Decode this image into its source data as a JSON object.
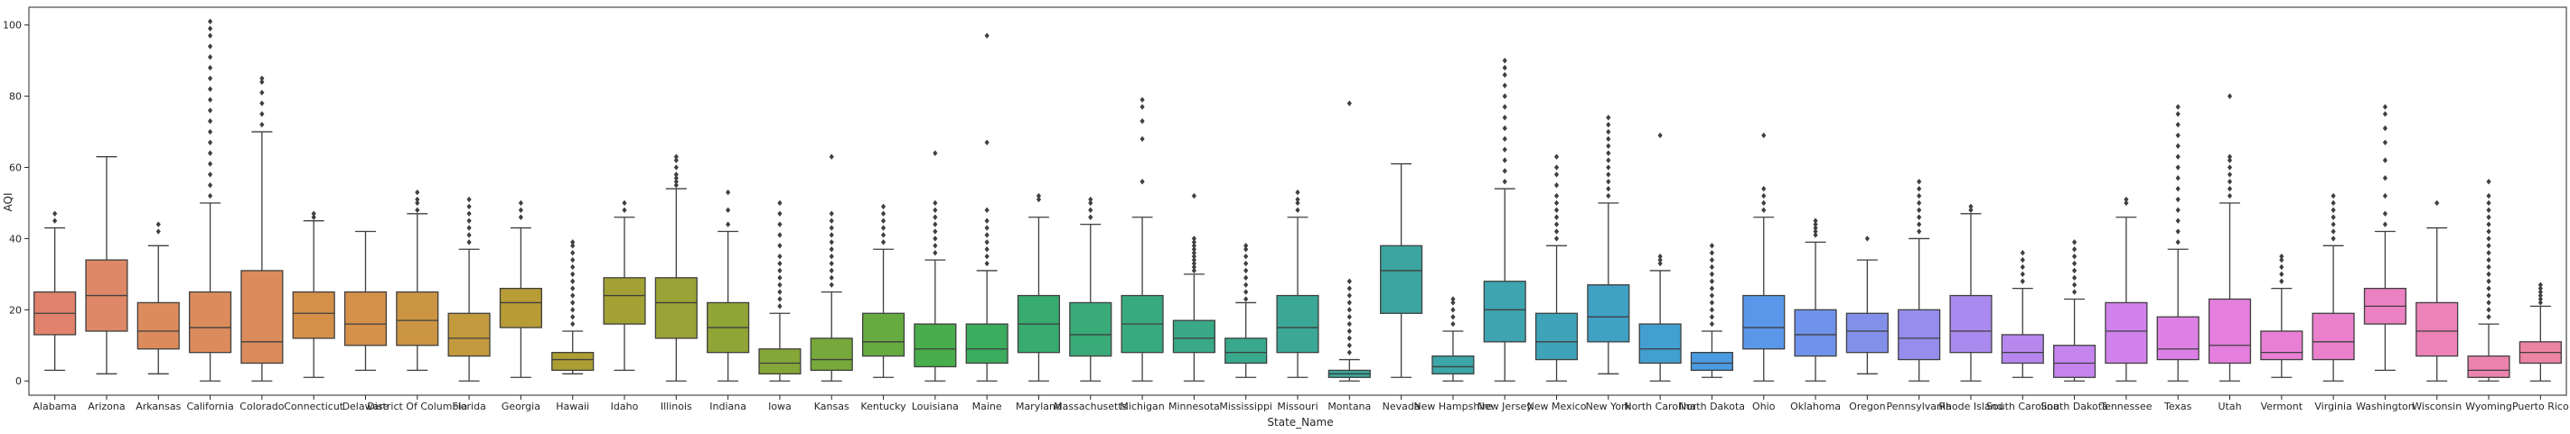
{
  "chart_data": {
    "type": "box",
    "xlabel": "State_Name",
    "ylabel": "AQI",
    "ylim": [
      -4,
      105
    ],
    "yticks": [
      0,
      20,
      40,
      60,
      80,
      100
    ],
    "grid": false,
    "legend": "none",
    "categories": [
      {
        "name": "Alabama",
        "color": "#e1826c",
        "min": 3,
        "q1": 13,
        "median": 19,
        "q3": 25,
        "max": 43,
        "outliers": [
          45,
          47
        ]
      },
      {
        "name": "Arizona",
        "color": "#df8867",
        "min": 2,
        "q1": 14,
        "median": 24,
        "q3": 34,
        "max": 63,
        "outliers": []
      },
      {
        "name": "Arkansas",
        "color": "#dc8c5c",
        "min": 2,
        "q1": 9,
        "median": 14,
        "q3": 22,
        "max": 38,
        "outliers": [
          42,
          44
        ]
      },
      {
        "name": "California",
        "color": "#dc8c5c",
        "min": 0,
        "q1": 8,
        "median": 15,
        "q3": 25,
        "max": 50,
        "outliers": [
          52,
          55,
          58,
          61,
          64,
          67,
          70,
          73,
          76,
          79,
          82,
          85,
          88,
          91,
          94,
          97,
          99,
          101
        ]
      },
      {
        "name": "Colorado",
        "color": "#dc8c5c",
        "min": 0,
        "q1": 5,
        "median": 11,
        "q3": 31,
        "max": 70,
        "outliers": [
          72,
          75,
          78,
          81,
          84,
          85
        ]
      },
      {
        "name": "Connecticut",
        "color": "#d5904a",
        "min": 1,
        "q1": 12,
        "median": 19,
        "q3": 25,
        "max": 45,
        "outliers": [
          46,
          47
        ]
      },
      {
        "name": "Delaware",
        "color": "#d5904a",
        "min": 3,
        "q1": 10,
        "median": 16,
        "q3": 25,
        "max": 42,
        "outliers": []
      },
      {
        "name": "District Of Columbia",
        "color": "#cc9544",
        "min": 3,
        "q1": 10,
        "median": 17,
        "q3": 25,
        "max": 47,
        "outliers": [
          48,
          50,
          51,
          53
        ]
      },
      {
        "name": "Florida",
        "color": "#c39a3d",
        "min": 0,
        "q1": 7,
        "median": 12,
        "q3": 19,
        "max": 37,
        "outliers": [
          39,
          41,
          43,
          45,
          47,
          49,
          51
        ]
      },
      {
        "name": "Georgia",
        "color": "#b89c35",
        "min": 1,
        "q1": 15,
        "median": 22,
        "q3": 26,
        "max": 43,
        "outliers": [
          46,
          48,
          50
        ]
      },
      {
        "name": "Hawaii",
        "color": "#ad9e33",
        "min": 2,
        "q1": 3,
        "median": 6,
        "q3": 8,
        "max": 14,
        "outliers": [
          16,
          18,
          20,
          22,
          24,
          26,
          28,
          30,
          32,
          34,
          36,
          38,
          39
        ]
      },
      {
        "name": "Idaho",
        "color": "#a4a134",
        "min": 3,
        "q1": 16,
        "median": 24,
        "q3": 29,
        "max": 46,
        "outliers": [
          48,
          50
        ]
      },
      {
        "name": "Illinois",
        "color": "#9aa335",
        "min": 0,
        "q1": 12,
        "median": 22,
        "q3": 29,
        "max": 54,
        "outliers": [
          55,
          56,
          57,
          58,
          60,
          62,
          63
        ]
      },
      {
        "name": "Indiana",
        "color": "#90a536",
        "min": 0,
        "q1": 8,
        "median": 15,
        "q3": 22,
        "max": 42,
        "outliers": [
          44,
          48,
          53
        ]
      },
      {
        "name": "Iowa",
        "color": "#85a638",
        "min": 0,
        "q1": 2,
        "median": 5,
        "q3": 9,
        "max": 19,
        "outliers": [
          21,
          23,
          25,
          27,
          29,
          31,
          33,
          35,
          38,
          41,
          44,
          47,
          50
        ]
      },
      {
        "name": "Kansas",
        "color": "#77a83b",
        "min": 0,
        "q1": 3,
        "median": 6,
        "q3": 12,
        "max": 25,
        "outliers": [
          27,
          29,
          31,
          33,
          35,
          37,
          39,
          41,
          43,
          45,
          47,
          63
        ]
      },
      {
        "name": "Kentucky",
        "color": "#66ab40",
        "min": 1,
        "q1": 7,
        "median": 11,
        "q3": 19,
        "max": 37,
        "outliers": [
          39,
          41,
          43,
          45,
          47,
          49
        ]
      },
      {
        "name": "Louisiana",
        "color": "#48ad4a",
        "min": 0,
        "q1": 4,
        "median": 9,
        "q3": 16,
        "max": 34,
        "outliers": [
          36,
          38,
          40,
          42,
          44,
          46,
          48,
          50,
          64
        ]
      },
      {
        "name": "Maine",
        "color": "#3cac5f",
        "min": 0,
        "q1": 5,
        "median": 9,
        "q3": 16,
        "max": 31,
        "outliers": [
          33,
          35,
          37,
          39,
          41,
          43,
          45,
          48,
          67,
          97
        ]
      },
      {
        "name": "Maryland",
        "color": "#38ab6f",
        "min": 0,
        "q1": 8,
        "median": 16,
        "q3": 24,
        "max": 46,
        "outliers": [
          51,
          52
        ]
      },
      {
        "name": "Massachusetts",
        "color": "#38ab78",
        "min": 0,
        "q1": 7,
        "median": 13,
        "q3": 22,
        "max": 44,
        "outliers": [
          46,
          48,
          50,
          51
        ]
      },
      {
        "name": "Michigan",
        "color": "#38aa7f",
        "min": 0,
        "q1": 8,
        "median": 16,
        "q3": 24,
        "max": 46,
        "outliers": [
          56,
          68,
          73,
          77,
          79
        ]
      },
      {
        "name": "Minnesota",
        "color": "#39a986",
        "min": 0,
        "q1": 8,
        "median": 12,
        "q3": 17,
        "max": 30,
        "outliers": [
          31,
          32,
          33,
          34,
          35,
          36,
          37,
          38,
          39,
          40,
          52
        ]
      },
      {
        "name": "Mississippi",
        "color": "#39a98d",
        "min": 1,
        "q1": 5,
        "median": 8,
        "q3": 12,
        "max": 22,
        "outliers": [
          23,
          25,
          27,
          29,
          31,
          33,
          35,
          37,
          38
        ]
      },
      {
        "name": "Missouri",
        "color": "#3aa894",
        "min": 1,
        "q1": 8,
        "median": 15,
        "q3": 24,
        "max": 46,
        "outliers": [
          48,
          50,
          51,
          53
        ]
      },
      {
        "name": "Montana",
        "color": "#3aa79a",
        "min": 0,
        "q1": 1,
        "median": 2,
        "q3": 3,
        "max": 6,
        "outliers": [
          8,
          10,
          12,
          14,
          16,
          18,
          20,
          22,
          24,
          26,
          28,
          78
        ]
      },
      {
        "name": "Nevada",
        "color": "#3ba6a0",
        "min": 1,
        "q1": 19,
        "median": 31,
        "q3": 38,
        "max": 61,
        "outliers": []
      },
      {
        "name": "New Hampshire",
        "color": "#3ca5a8",
        "min": 0,
        "q1": 2,
        "median": 4,
        "q3": 7,
        "max": 14,
        "outliers": [
          16,
          18,
          20,
          22,
          23
        ]
      },
      {
        "name": "New Jersey",
        "color": "#3da4b0",
        "min": 0,
        "q1": 11,
        "median": 20,
        "q3": 28,
        "max": 54,
        "outliers": [
          56,
          59,
          62,
          65,
          68,
          71,
          74,
          77,
          80,
          83,
          86,
          88,
          90
        ]
      },
      {
        "name": "New Mexico",
        "color": "#3ea3b9",
        "min": 0,
        "q1": 6,
        "median": 11,
        "q3": 19,
        "max": 38,
        "outliers": [
          40,
          42,
          44,
          46,
          48,
          50,
          52,
          55,
          58,
          60,
          63
        ]
      },
      {
        "name": "New York",
        "color": "#3fa1c4",
        "min": 2,
        "q1": 11,
        "median": 18,
        "q3": 27,
        "max": 50,
        "outliers": [
          52,
          54,
          56,
          58,
          60,
          62,
          64,
          66,
          68,
          70,
          72,
          74
        ]
      },
      {
        "name": "North Carolina",
        "color": "#429fd0",
        "min": 0,
        "q1": 5,
        "median": 9,
        "q3": 16,
        "max": 31,
        "outliers": [
          33,
          34,
          35,
          69
        ]
      },
      {
        "name": "North Dakota",
        "color": "#4b9be0",
        "min": 1,
        "q1": 3,
        "median": 5,
        "q3": 8,
        "max": 14,
        "outliers": [
          16,
          18,
          20,
          22,
          24,
          26,
          28,
          30,
          32,
          34,
          36,
          38
        ]
      },
      {
        "name": "Ohio",
        "color": "#5a97e8",
        "min": 0,
        "q1": 9,
        "median": 15,
        "q3": 24,
        "max": 46,
        "outliers": [
          48,
          50,
          52,
          54,
          69
        ]
      },
      {
        "name": "Oklahoma",
        "color": "#6f92ea",
        "min": 0,
        "q1": 7,
        "median": 13,
        "q3": 20,
        "max": 39,
        "outliers": [
          41,
          42,
          43,
          44,
          45
        ]
      },
      {
        "name": "Oregon",
        "color": "#8390ea",
        "min": 2,
        "q1": 8,
        "median": 14,
        "q3": 19,
        "max": 34,
        "outliers": [
          40
        ]
      },
      {
        "name": "Pennsylvania",
        "color": "#968ded",
        "min": 0,
        "q1": 6,
        "median": 12,
        "q3": 20,
        "max": 40,
        "outliers": [
          42,
          44,
          46,
          48,
          50,
          52,
          54,
          56
        ]
      },
      {
        "name": "Rhode Island",
        "color": "#a98aee",
        "min": 0,
        "q1": 8,
        "median": 14,
        "q3": 24,
        "max": 47,
        "outliers": [
          48,
          49
        ]
      },
      {
        "name": "South Carolina",
        "color": "#b787ee",
        "min": 1,
        "q1": 5,
        "median": 8,
        "q3": 13,
        "max": 26,
        "outliers": [
          28,
          30,
          32,
          34,
          36
        ]
      },
      {
        "name": "South Dakota",
        "color": "#c584ee",
        "min": 0,
        "q1": 1,
        "median": 5,
        "q3": 10,
        "max": 23,
        "outliers": [
          25,
          27,
          29,
          31,
          33,
          35,
          37,
          39
        ]
      },
      {
        "name": "Tennessee",
        "color": "#d182ec",
        "min": 0,
        "q1": 5,
        "median": 14,
        "q3": 22,
        "max": 46,
        "outliers": [
          50,
          51
        ]
      },
      {
        "name": "Texas",
        "color": "#dd80e6",
        "min": 0,
        "q1": 6,
        "median": 9,
        "q3": 18,
        "max": 37,
        "outliers": [
          39,
          42,
          45,
          48,
          51,
          54,
          57,
          60,
          63,
          66,
          69,
          72,
          75,
          77
        ]
      },
      {
        "name": "Utah",
        "color": "#e47fdd",
        "min": 0,
        "q1": 5,
        "median": 10,
        "q3": 23,
        "max": 50,
        "outliers": [
          52,
          54,
          56,
          58,
          60,
          62,
          63,
          80
        ]
      },
      {
        "name": "Vermont",
        "color": "#e87fd4",
        "min": 1,
        "q1": 6,
        "median": 8,
        "q3": 14,
        "max": 26,
        "outliers": [
          28,
          30,
          32,
          34,
          35
        ]
      },
      {
        "name": "Virginia",
        "color": "#ea80cc",
        "min": 0,
        "q1": 6,
        "median": 11,
        "q3": 19,
        "max": 38,
        "outliers": [
          40,
          42,
          44,
          46,
          48,
          50,
          52
        ]
      },
      {
        "name": "Washington",
        "color": "#eb81c2",
        "min": 3,
        "q1": 16,
        "median": 21,
        "q3": 26,
        "max": 42,
        "outliers": [
          44,
          47,
          52,
          57,
          62,
          67,
          71,
          75,
          77
        ]
      },
      {
        "name": "Wisconsin",
        "color": "#ec82b8",
        "min": 0,
        "q1": 7,
        "median": 14,
        "q3": 22,
        "max": 43,
        "outliers": [
          50
        ]
      },
      {
        "name": "Wyoming",
        "color": "#ec83ad",
        "min": 0,
        "q1": 1,
        "median": 3,
        "q3": 7,
        "max": 16,
        "outliers": [
          18,
          20,
          22,
          24,
          26,
          28,
          30,
          32,
          34,
          36,
          38,
          40,
          42,
          44,
          46,
          48,
          50,
          52,
          56
        ]
      },
      {
        "name": "Puerto Rico",
        "color": "#ec84a4",
        "min": 0,
        "q1": 5,
        "median": 8,
        "q3": 11,
        "max": 21,
        "outliers": [
          22,
          23,
          24,
          25,
          26,
          27
        ]
      }
    ]
  }
}
